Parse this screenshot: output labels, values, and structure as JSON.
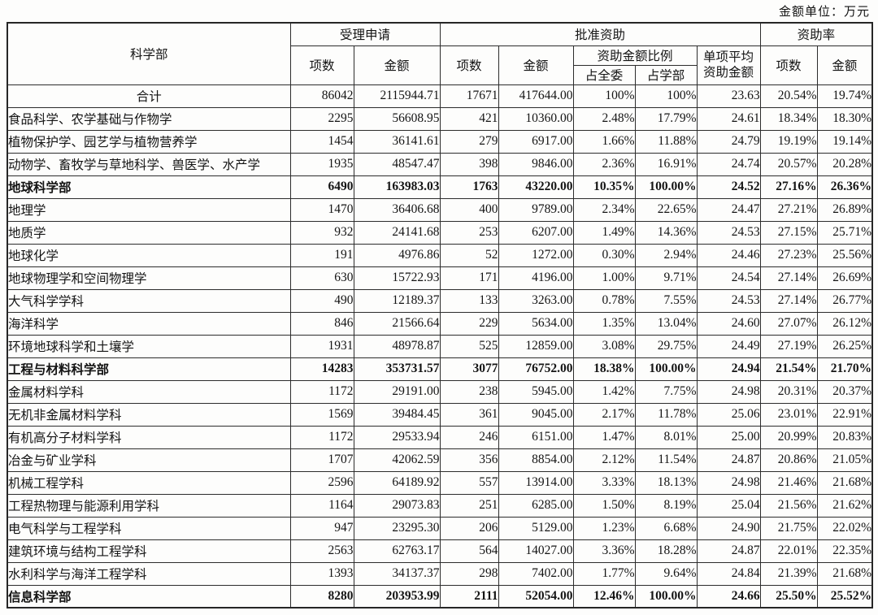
{
  "page": {
    "unit_label": "金额单位：万元"
  },
  "table": {
    "header": {
      "department": "科学部",
      "accepted_group": "受理申请",
      "approved_group": "批准资助",
      "rate_group": "资助率",
      "items": "项数",
      "amount": "金额",
      "ratio_group": "资助金额比例",
      "ratio_committee": "占全委",
      "ratio_department": "占学部",
      "avg_line1": "单项平均",
      "avg_line2": "资助金额"
    },
    "rows": [
      {
        "name": "合计",
        "bold": false,
        "center": true,
        "cells": [
          "86042",
          "2115944.71",
          "17671",
          "417644.00",
          "100%",
          "100%",
          "23.63",
          "20.54%",
          "19.74%"
        ]
      },
      {
        "name": "食品科学、农学基础与作物学",
        "bold": false,
        "center": false,
        "cells": [
          "2295",
          "56608.95",
          "421",
          "10360.00",
          "2.48%",
          "17.79%",
          "24.61",
          "18.34%",
          "18.30%"
        ]
      },
      {
        "name": "植物保护学、园艺学与植物营养学",
        "bold": false,
        "center": false,
        "cells": [
          "1454",
          "36141.61",
          "279",
          "6917.00",
          "1.66%",
          "11.88%",
          "24.79",
          "19.19%",
          "19.14%"
        ]
      },
      {
        "name": "动物学、畜牧学与草地科学、兽医学、水产学",
        "bold": false,
        "center": false,
        "cells": [
          "1935",
          "48547.47",
          "398",
          "9846.00",
          "2.36%",
          "16.91%",
          "24.74",
          "20.57%",
          "20.28%"
        ]
      },
      {
        "name": "地球科学部",
        "bold": true,
        "center": false,
        "cells": [
          "6490",
          "163983.03",
          "1763",
          "43220.00",
          "10.35%",
          "100.00%",
          "24.52",
          "27.16%",
          "26.36%"
        ]
      },
      {
        "name": "地理学",
        "bold": false,
        "center": false,
        "cells": [
          "1470",
          "36406.68",
          "400",
          "9789.00",
          "2.34%",
          "22.65%",
          "24.47",
          "27.21%",
          "26.89%"
        ]
      },
      {
        "name": "地质学",
        "bold": false,
        "center": false,
        "cells": [
          "932",
          "24141.68",
          "253",
          "6207.00",
          "1.49%",
          "14.36%",
          "24.53",
          "27.15%",
          "25.71%"
        ]
      },
      {
        "name": "地球化学",
        "bold": false,
        "center": false,
        "cells": [
          "191",
          "4976.86",
          "52",
          "1272.00",
          "0.30%",
          "2.94%",
          "24.46",
          "27.23%",
          "25.56%"
        ]
      },
      {
        "name": "地球物理学和空间物理学",
        "bold": false,
        "center": false,
        "cells": [
          "630",
          "15722.93",
          "171",
          "4196.00",
          "1.00%",
          "9.71%",
          "24.54",
          "27.14%",
          "26.69%"
        ]
      },
      {
        "name": "大气科学学科",
        "bold": false,
        "center": false,
        "cells": [
          "490",
          "12189.37",
          "133",
          "3263.00",
          "0.78%",
          "7.55%",
          "24.53",
          "27.14%",
          "26.77%"
        ]
      },
      {
        "name": "海洋科学",
        "bold": false,
        "center": false,
        "cells": [
          "846",
          "21566.64",
          "229",
          "5634.00",
          "1.35%",
          "13.04%",
          "24.60",
          "27.07%",
          "26.12%"
        ]
      },
      {
        "name": "环境地球科学和土壤学",
        "bold": false,
        "center": false,
        "cells": [
          "1931",
          "48978.87",
          "525",
          "12859.00",
          "3.08%",
          "29.75%",
          "24.49",
          "27.19%",
          "26.25%"
        ]
      },
      {
        "name": "工程与材料科学部",
        "bold": true,
        "center": false,
        "cells": [
          "14283",
          "353731.57",
          "3077",
          "76752.00",
          "18.38%",
          "100.00%",
          "24.94",
          "21.54%",
          "21.70%"
        ]
      },
      {
        "name": "金属材料学科",
        "bold": false,
        "center": false,
        "cells": [
          "1172",
          "29191.00",
          "238",
          "5945.00",
          "1.42%",
          "7.75%",
          "24.98",
          "20.31%",
          "20.37%"
        ]
      },
      {
        "name": "无机非金属材料学科",
        "bold": false,
        "center": false,
        "cells": [
          "1569",
          "39484.45",
          "361",
          "9045.00",
          "2.17%",
          "11.78%",
          "25.06",
          "23.01%",
          "22.91%"
        ]
      },
      {
        "name": "有机高分子材料学科",
        "bold": false,
        "center": false,
        "cells": [
          "1172",
          "29533.94",
          "246",
          "6151.00",
          "1.47%",
          "8.01%",
          "25.00",
          "20.99%",
          "20.83%"
        ]
      },
      {
        "name": "冶金与矿业学科",
        "bold": false,
        "center": false,
        "cells": [
          "1707",
          "42062.59",
          "356",
          "8854.00",
          "2.12%",
          "11.54%",
          "24.87",
          "20.86%",
          "21.05%"
        ]
      },
      {
        "name": "机械工程学科",
        "bold": false,
        "center": false,
        "cells": [
          "2596",
          "64189.92",
          "557",
          "13914.00",
          "3.33%",
          "18.13%",
          "24.98",
          "21.46%",
          "21.68%"
        ]
      },
      {
        "name": "工程热物理与能源利用学科",
        "bold": false,
        "center": false,
        "cells": [
          "1164",
          "29073.83",
          "251",
          "6285.00",
          "1.50%",
          "8.19%",
          "25.04",
          "21.56%",
          "21.62%"
        ]
      },
      {
        "name": "电气科学与工程学科",
        "bold": false,
        "center": false,
        "cells": [
          "947",
          "23295.30",
          "206",
          "5129.00",
          "1.23%",
          "6.68%",
          "24.90",
          "21.75%",
          "22.02%"
        ]
      },
      {
        "name": "建筑环境与结构工程学科",
        "bold": false,
        "center": false,
        "cells": [
          "2563",
          "62763.17",
          "564",
          "14027.00",
          "3.36%",
          "18.28%",
          "24.87",
          "22.01%",
          "22.35%"
        ]
      },
      {
        "name": "水利科学与海洋工程学科",
        "bold": false,
        "center": false,
        "cells": [
          "1393",
          "34137.37",
          "298",
          "7402.00",
          "1.77%",
          "9.64%",
          "24.84",
          "21.39%",
          "21.68%"
        ]
      },
      {
        "name": "信息科学部",
        "bold": true,
        "center": false,
        "cells": [
          "8280",
          "203953.99",
          "2111",
          "52054.00",
          "12.46%",
          "100.00%",
          "24.66",
          "25.50%",
          "25.52%"
        ]
      }
    ]
  }
}
